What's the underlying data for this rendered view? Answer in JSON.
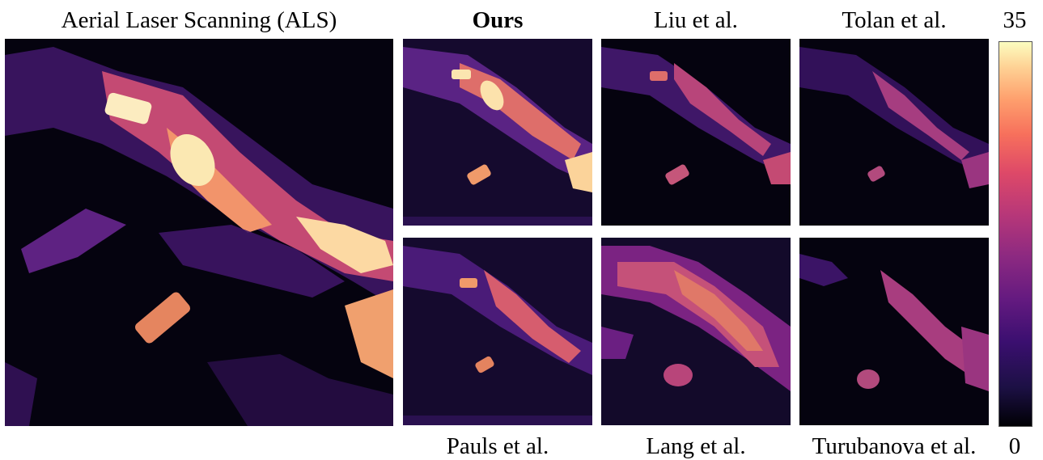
{
  "titles": {
    "als": "Aerial Laser Scanning (ALS)",
    "ours": "Ours",
    "liu": "Liu et al.",
    "tolan": "Tolan et al.",
    "pauls": "Pauls et al.",
    "lang": "Lang et al.",
    "turubanova": "Turubanova et al."
  },
  "colorbar": {
    "max_label": "35",
    "min_label": "0",
    "colormap": "magma"
  },
  "colors": {
    "low": "#000004",
    "mid": "#8c2981",
    "high": "#fcfdbf"
  }
}
